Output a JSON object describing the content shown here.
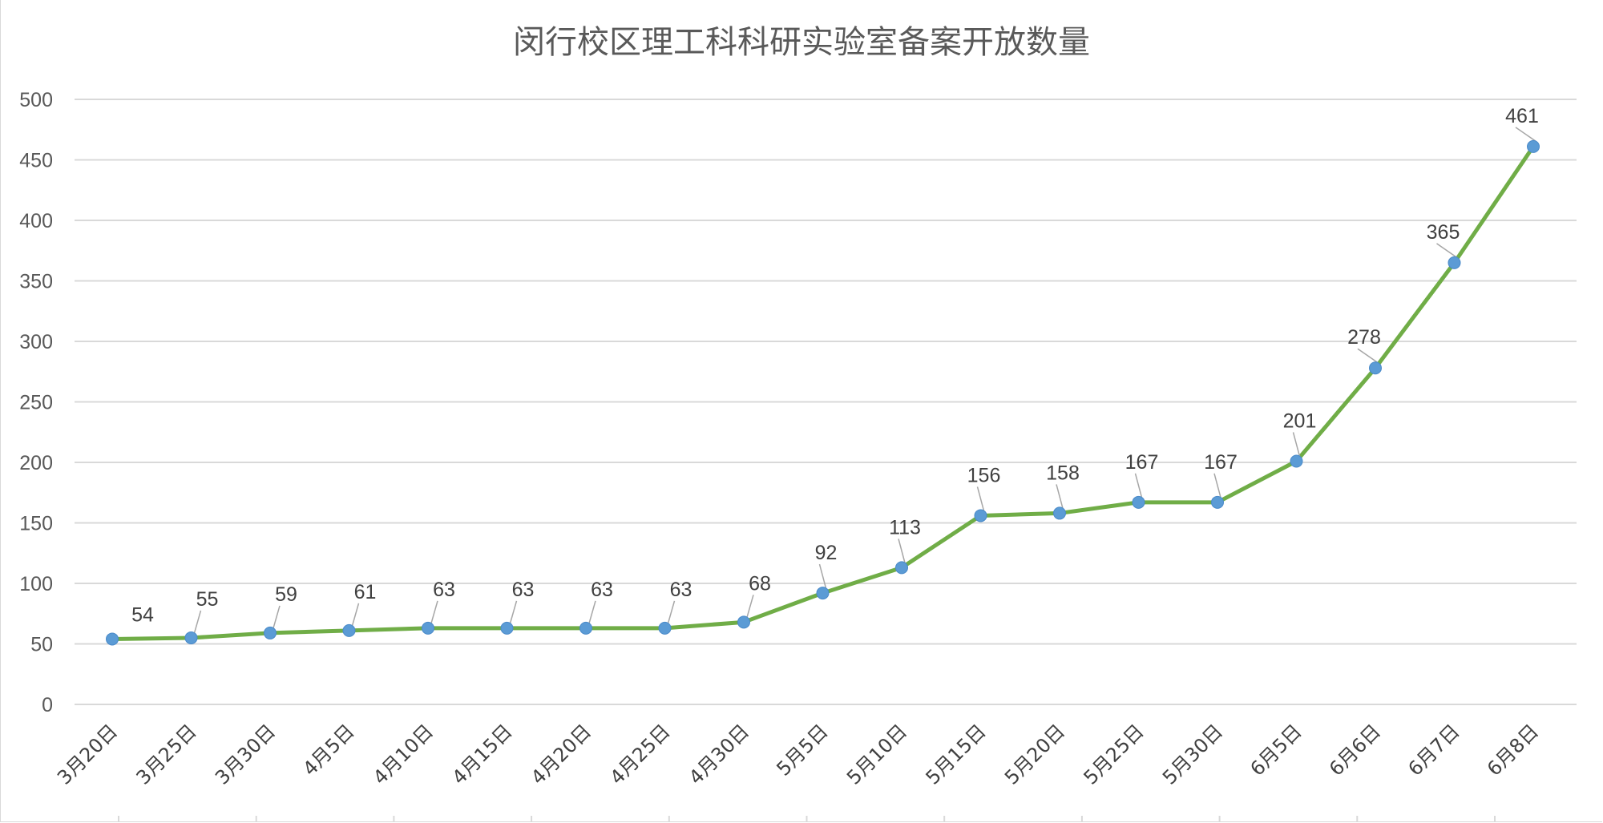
{
  "chart_data": {
    "type": "line",
    "title": "闵行校区理工科科研实验室备案开放数量",
    "xlabel": "",
    "ylabel": "",
    "ylim": [
      0,
      500
    ],
    "yticks": [
      "0",
      "50",
      "100",
      "150",
      "200",
      "250",
      "300",
      "350",
      "400",
      "450",
      "500"
    ],
    "grid": true,
    "legend": "none",
    "categories": [
      "3月20日",
      "3月25日",
      "3月30日",
      "4月5日",
      "4月10日",
      "4月15日",
      "4月20日",
      "4月25日",
      "4月30日",
      "5月5日",
      "5月10日",
      "5月15日",
      "5月20日",
      "5月25日",
      "5月30日",
      "6月5日",
      "6月6日",
      "6月7日",
      "6月8日"
    ],
    "series": [
      {
        "values": [
          54,
          55,
          59,
          61,
          63,
          63,
          63,
          63,
          68,
          92,
          113,
          156,
          158,
          167,
          167,
          201,
          278,
          365,
          461
        ],
        "line_color": "#70ad47",
        "marker_color": "#5b9bd5"
      }
    ]
  }
}
